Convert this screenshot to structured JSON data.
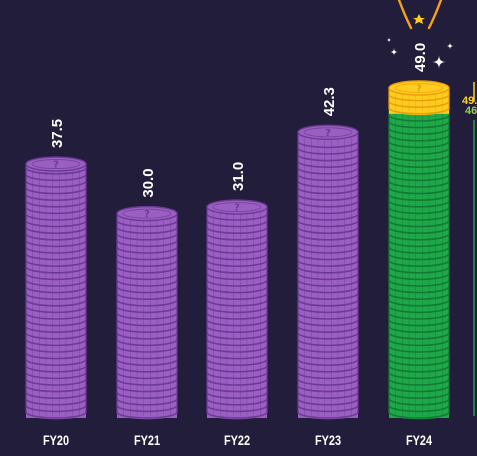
{
  "chart_data": {
    "type": "bar",
    "style": "stacked coin pillars",
    "title": "",
    "xlabel": "",
    "ylabel": "",
    "categories": [
      "FY20",
      "FY21",
      "FY22",
      "FY23",
      "FY24"
    ],
    "values": [
      37.5,
      30.0,
      31.0,
      42.3,
      49.0
    ],
    "value_labels": [
      "37.5",
      "30.0",
      "31.0",
      "42.3",
      "49.0"
    ],
    "ylim": [
      0,
      49
    ],
    "grid": false,
    "legend": "none",
    "highlight": {
      "category": "FY24",
      "split": [
        {
          "part": "green",
          "value": 46
        },
        {
          "part": "gold",
          "value": 3
        }
      ],
      "side_labels": [
        "49.",
        "46"
      ]
    },
    "coin_symbol": "?",
    "colors": {
      "background": "#221d3a",
      "purple_coin": "#9b5fc4",
      "purple_edge": "#6c3a94",
      "green_coin": "#1fa84a",
      "green_edge": "#127a33",
      "gold_coin": "#ffcc1f",
      "gold_edge": "#e8a008",
      "label_text": "#ffffff",
      "side_label_gold": "#ffd21f",
      "side_label_green": "#8fd44a",
      "flame": "#f6a21b"
    }
  }
}
